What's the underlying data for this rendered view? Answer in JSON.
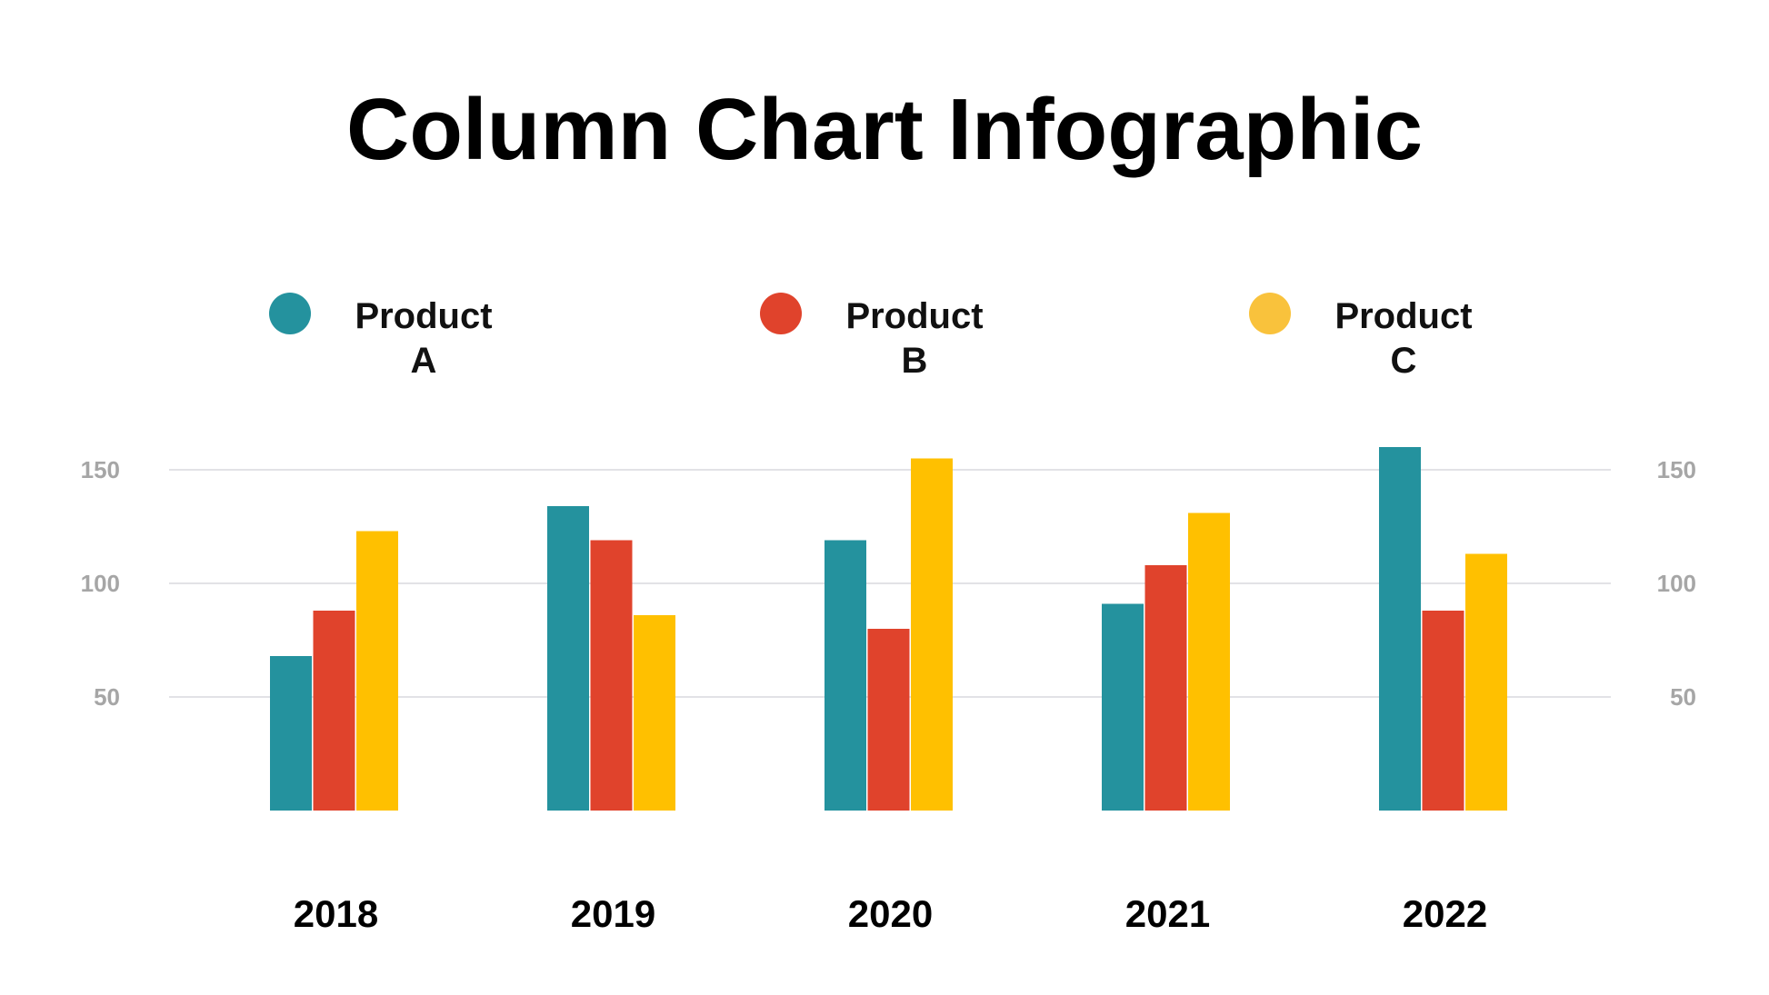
{
  "chart_data": {
    "type": "bar",
    "title": "Column Chart Infographic",
    "categories": [
      "2018",
      "2019",
      "2020",
      "2021",
      "2022"
    ],
    "series": [
      {
        "name": "Product A",
        "color": "#24929E",
        "values": [
          68,
          134,
          119,
          91,
          160
        ]
      },
      {
        "name": "Product B",
        "color": "#E0432C",
        "values": [
          88,
          119,
          80,
          108,
          88
        ]
      },
      {
        "name": "Product C",
        "color": "#FFC000",
        "values": [
          123,
          86,
          155,
          131,
          113
        ]
      }
    ],
    "ylim": [
      0,
      150
    ],
    "yticks": [
      "50",
      "100",
      "150"
    ],
    "grid": true,
    "legend_position": "top",
    "xlabel": "",
    "ylabel": ""
  },
  "legend": [
    {
      "label": "Product A",
      "color": "#24929E"
    },
    {
      "label": "Product B",
      "color": "#E0432C"
    },
    {
      "label": "Product C",
      "color": "#F9C23C"
    }
  ]
}
